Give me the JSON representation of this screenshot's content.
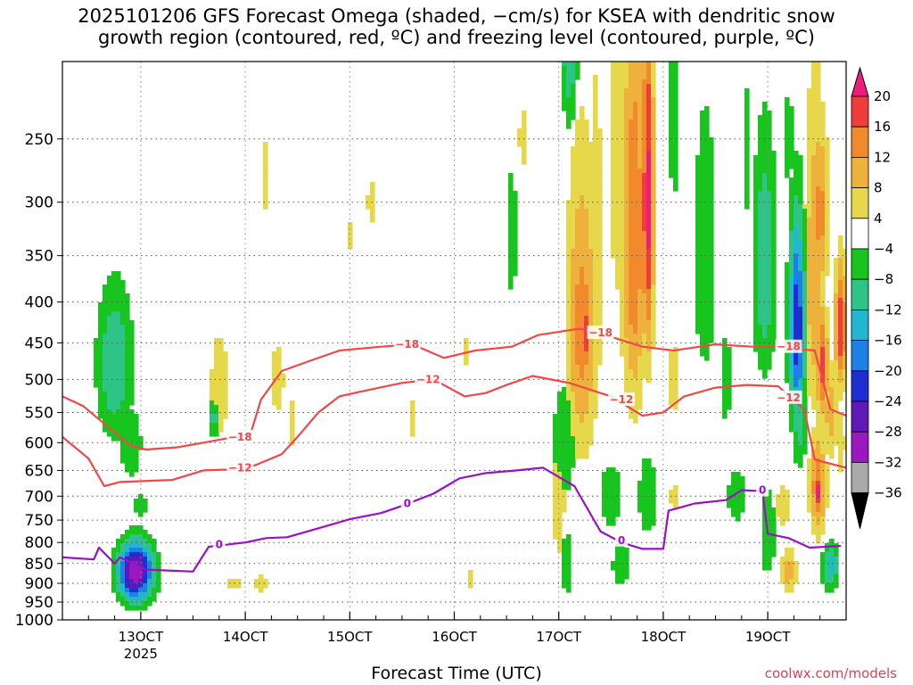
{
  "title_line1": "2025101206 GFS Forecast Omega (shaded, −cm/s) for KSEA with dendritic snow",
  "title_line2": "growth region (contoured, red, ºC) and freezing level (contoured, purple, ºC)",
  "credit": "coolwx.com/models",
  "chart_data": {
    "type": "heatmap",
    "title": "2025101206 GFS Forecast Omega (shaded, −cm/s) for KSEA with dendritic snow growth region (contoured, red, ºC) and freezing level (contoured, purple, ºC)",
    "xlabel": "Forecast Time (UTC)",
    "ylabel": "",
    "y_axis": {
      "scale": "log-pressure",
      "unit": "hPa",
      "ylim": [
        1000,
        200
      ],
      "ticks": [
        250,
        300,
        350,
        400,
        450,
        500,
        550,
        600,
        650,
        700,
        750,
        800,
        850,
        900,
        950,
        1000
      ]
    },
    "x_axis": {
      "start_day": 12.25,
      "end_day": 19.75,
      "ticks": [
        {
          "day": 13,
          "label": "13OCT",
          "sub": "2025"
        },
        {
          "day": 14,
          "label": "14OCT"
        },
        {
          "day": 15,
          "label": "15OCT"
        },
        {
          "day": 16,
          "label": "16OCT"
        },
        {
          "day": 17,
          "label": "17OCT"
        },
        {
          "day": 18,
          "label": "18OCT"
        },
        {
          "day": 19,
          "label": "19OCT"
        }
      ]
    },
    "grid": true,
    "colorbar": {
      "labels": [
        "20",
        "16",
        "12",
        "8",
        "4",
        "−4",
        "−8",
        "−12",
        "−16",
        "−20",
        "−24",
        "−28",
        "−32",
        "−36"
      ],
      "bins": [
        {
          "v": 22,
          "c": "#ee1c7a"
        },
        {
          "v": 18,
          "c": "#f03c3c"
        },
        {
          "v": 14,
          "c": "#f08a2c"
        },
        {
          "v": 10,
          "c": "#eeb23c"
        },
        {
          "v": 6,
          "c": "#e6d84a"
        },
        {
          "v": 0,
          "c": "#ffffff"
        },
        {
          "v": -6,
          "c": "#18c41e"
        },
        {
          "v": -10,
          "c": "#2ec488"
        },
        {
          "v": -14,
          "c": "#22b6d0"
        },
        {
          "v": -18,
          "c": "#1c80e6"
        },
        {
          "v": -22,
          "c": "#1e2ed0"
        },
        {
          "v": -26,
          "c": "#6018b8"
        },
        {
          "v": -30,
          "c": "#9a18c0"
        },
        {
          "v": -34,
          "c": "#aaaaaa"
        },
        {
          "v": -38,
          "c": "#000000"
        }
      ]
    },
    "omega_blobs": [
      {
        "t": 12.75,
        "p": 480,
        "wt": 0.18,
        "wp": 110,
        "v": -12
      },
      {
        "t": 12.9,
        "p": 600,
        "wt": 0.12,
        "wp": 70,
        "v": -8
      },
      {
        "t": 13.0,
        "p": 720,
        "wt": 0.08,
        "wp": 40,
        "v": -6
      },
      {
        "t": 12.95,
        "p": 870,
        "wt": 0.17,
        "wp": 75,
        "v": -32
      },
      {
        "t": 13.7,
        "p": 560,
        "wt": 0.06,
        "wp": 30,
        "v": -10
      },
      {
        "t": 13.75,
        "p": 510,
        "wt": 0.12,
        "wp": 110,
        "v": 6
      },
      {
        "t": 13.9,
        "p": 900,
        "wt": 0.12,
        "wp": 30,
        "v": 5
      },
      {
        "t": 14.2,
        "p": 280,
        "wt": 0.06,
        "wp": 60,
        "v": 5
      },
      {
        "t": 14.3,
        "p": 500,
        "wt": 0.1,
        "wp": 70,
        "v": 6
      },
      {
        "t": 14.45,
        "p": 570,
        "wt": 0.08,
        "wp": 80,
        "v": 5
      },
      {
        "t": 14.15,
        "p": 900,
        "wt": 0.1,
        "wp": 30,
        "v": 6
      },
      {
        "t": 15.0,
        "p": 330,
        "wt": 0.05,
        "wp": 30,
        "v": 5
      },
      {
        "t": 15.2,
        "p": 300,
        "wt": 0.06,
        "wp": 40,
        "v": 5
      },
      {
        "t": 15.6,
        "p": 560,
        "wt": 0.05,
        "wp": 60,
        "v": 5
      },
      {
        "t": 16.1,
        "p": 460,
        "wt": 0.05,
        "wp": 40,
        "v": 5
      },
      {
        "t": 16.15,
        "p": 890,
        "wt": 0.05,
        "wp": 50,
        "v": 5
      },
      {
        "t": 16.55,
        "p": 330,
        "wt": 0.05,
        "wp": 70,
        "v": -8
      },
      {
        "t": 16.65,
        "p": 250,
        "wt": 0.06,
        "wp": 50,
        "v": 5
      },
      {
        "t": 17.0,
        "p": 700,
        "wt": 0.08,
        "wp": 200,
        "v": 6
      },
      {
        "t": 17.05,
        "p": 600,
        "wt": 0.12,
        "wp": 110,
        "v": -8
      },
      {
        "t": 17.08,
        "p": 850,
        "wt": 0.06,
        "wp": 90,
        "v": -8
      },
      {
        "t": 17.1,
        "p": 180,
        "wt": 0.08,
        "wp": 55,
        "v": -14
      },
      {
        "t": 17.22,
        "p": 430,
        "wt": 0.15,
        "wp": 180,
        "v": 14
      },
      {
        "t": 17.25,
        "p": 440,
        "wt": 0.04,
        "wp": 50,
        "v": 22
      },
      {
        "t": 17.35,
        "p": 360,
        "wt": 0.1,
        "wp": 240,
        "v": 6
      },
      {
        "t": 17.5,
        "p": 700,
        "wt": 0.12,
        "wp": 70,
        "v": -8
      },
      {
        "t": 17.6,
        "p": 850,
        "wt": 0.1,
        "wp": 60,
        "v": -8
      },
      {
        "t": 17.6,
        "p": 250,
        "wt": 0.14,
        "wp": 170,
        "v": 8
      },
      {
        "t": 17.72,
        "p": 330,
        "wt": 0.12,
        "wp": 200,
        "v": 16
      },
      {
        "t": 17.85,
        "p": 300,
        "wt": 0.06,
        "wp": 160,
        "v": 22
      },
      {
        "t": 17.85,
        "p": 700,
        "wt": 0.1,
        "wp": 90,
        "v": -8
      },
      {
        "t": 18.1,
        "p": 240,
        "wt": 0.06,
        "wp": 90,
        "v": -6
      },
      {
        "t": 18.1,
        "p": 500,
        "wt": 0.08,
        "wp": 70,
        "v": 6
      },
      {
        "t": 18.1,
        "p": 700,
        "wt": 0.06,
        "wp": 60,
        "v": 5
      },
      {
        "t": 18.4,
        "p": 350,
        "wt": 0.12,
        "wp": 150,
        "v": -8
      },
      {
        "t": 18.6,
        "p": 500,
        "wt": 0.06,
        "wp": 100,
        "v": -6
      },
      {
        "t": 18.8,
        "p": 260,
        "wt": 0.06,
        "wp": 70,
        "v": -6
      },
      {
        "t": 18.7,
        "p": 700,
        "wt": 0.1,
        "wp": 60,
        "v": -8
      },
      {
        "t": 18.97,
        "p": 360,
        "wt": 0.12,
        "wp": 130,
        "v": -12
      },
      {
        "t": 18.95,
        "p": 350,
        "wt": 0.03,
        "wp": 30,
        "v": -18
      },
      {
        "t": 19.0,
        "p": 780,
        "wt": 0.08,
        "wp": 110,
        "v": -8
      },
      {
        "t": 19.15,
        "p": 720,
        "wt": 0.08,
        "wp": 50,
        "v": 8
      },
      {
        "t": 19.2,
        "p": 870,
        "wt": 0.08,
        "wp": 60,
        "v": 10
      },
      {
        "t": 19.2,
        "p": 250,
        "wt": 0.06,
        "wp": 50,
        "v": -6
      },
      {
        "t": 19.28,
        "p": 430,
        "wt": 0.08,
        "wp": 130,
        "v": -24
      },
      {
        "t": 19.3,
        "p": 560,
        "wt": 0.08,
        "wp": 90,
        "v": -10
      },
      {
        "t": 19.45,
        "p": 370,
        "wt": 0.1,
        "wp": 170,
        "v": 12
      },
      {
        "t": 19.5,
        "p": 310,
        "wt": 0.08,
        "wp": 80,
        "v": 14
      },
      {
        "t": 19.48,
        "p": 680,
        "wt": 0.08,
        "wp": 100,
        "v": 16
      },
      {
        "t": 19.48,
        "p": 690,
        "wt": 0.03,
        "wp": 40,
        "v": 22
      },
      {
        "t": 19.52,
        "p": 480,
        "wt": 0.06,
        "wp": 80,
        "v": 18
      },
      {
        "t": 19.6,
        "p": 550,
        "wt": 0.08,
        "wp": 80,
        "v": 10
      },
      {
        "t": 19.6,
        "p": 860,
        "wt": 0.08,
        "wp": 60,
        "v": -14
      },
      {
        "t": 19.7,
        "p": 430,
        "wt": 0.06,
        "wp": 80,
        "v": 20
      },
      {
        "t": 19.7,
        "p": 600,
        "wt": 0.06,
        "wp": 80,
        "v": 6
      }
    ],
    "contours": [
      {
        "name": "freezing level",
        "label": "0",
        "color": "#9a10c6",
        "points": [
          [
            12.25,
            835
          ],
          [
            12.55,
            840
          ],
          [
            12.6,
            812
          ],
          [
            12.75,
            850
          ],
          [
            12.8,
            835
          ],
          [
            13.05,
            865
          ],
          [
            13.5,
            870
          ],
          [
            13.65,
            810
          ],
          [
            14.0,
            800
          ],
          [
            14.2,
            790
          ],
          [
            14.4,
            788
          ],
          [
            14.7,
            768
          ],
          [
            15.0,
            748
          ],
          [
            15.3,
            735
          ],
          [
            15.5,
            720
          ],
          [
            15.8,
            695
          ],
          [
            16.05,
            665
          ],
          [
            16.3,
            655
          ],
          [
            16.6,
            650
          ],
          [
            16.85,
            645
          ],
          [
            17.15,
            680
          ],
          [
            17.4,
            775
          ],
          [
            17.6,
            800
          ],
          [
            17.8,
            815
          ],
          [
            18.0,
            815
          ],
          [
            18.05,
            730
          ],
          [
            18.3,
            715
          ],
          [
            18.6,
            708
          ],
          [
            18.75,
            688
          ],
          [
            18.95,
            690
          ],
          [
            19.0,
            780
          ],
          [
            19.2,
            790
          ],
          [
            19.4,
            812
          ],
          [
            19.7,
            808
          ]
        ],
        "labels": [
          {
            "t": 13.75,
            "p": 805
          },
          {
            "t": 15.55,
            "p": 715
          },
          {
            "t": 17.6,
            "p": 795
          },
          {
            "t": 18.95,
            "p": 688
          }
        ]
      },
      {
        "name": "-12 C isotherm",
        "label": "−12",
        "color": "#f04848",
        "points": [
          [
            12.25,
            590
          ],
          [
            12.5,
            628
          ],
          [
            12.65,
            680
          ],
          [
            12.8,
            672
          ],
          [
            13.3,
            668
          ],
          [
            13.6,
            650
          ],
          [
            13.9,
            648
          ],
          [
            14.1,
            640
          ],
          [
            14.35,
            620
          ],
          [
            14.5,
            590
          ],
          [
            14.7,
            550
          ],
          [
            14.9,
            525
          ],
          [
            15.1,
            518
          ],
          [
            15.5,
            505
          ],
          [
            15.8,
            500
          ],
          [
            16.1,
            525
          ],
          [
            16.3,
            520
          ],
          [
            16.5,
            508
          ],
          [
            16.75,
            495
          ],
          [
            17.1,
            505
          ],
          [
            17.5,
            525
          ],
          [
            17.8,
            555
          ],
          [
            18.0,
            550
          ],
          [
            18.2,
            525
          ],
          [
            18.5,
            512
          ],
          [
            18.8,
            508
          ],
          [
            19.1,
            510
          ],
          [
            19.35,
            545
          ],
          [
            19.45,
            630
          ],
          [
            19.75,
            645
          ]
        ],
        "labels": [
          {
            "t": 13.95,
            "p": 645
          },
          {
            "t": 15.75,
            "p": 500
          },
          {
            "t": 17.6,
            "p": 530
          },
          {
            "t": 19.2,
            "p": 527
          }
        ]
      },
      {
        "name": "-18 C isotherm",
        "label": "−18",
        "color": "#f04848",
        "points": [
          [
            12.25,
            525
          ],
          [
            12.45,
            540
          ],
          [
            12.7,
            575
          ],
          [
            12.9,
            605
          ],
          [
            13.05,
            612
          ],
          [
            13.35,
            608
          ],
          [
            13.6,
            600
          ],
          [
            13.9,
            590
          ],
          [
            14.05,
            585
          ],
          [
            14.15,
            530
          ],
          [
            14.35,
            488
          ],
          [
            14.6,
            475
          ],
          [
            14.9,
            460
          ],
          [
            15.3,
            455
          ],
          [
            15.6,
            452
          ],
          [
            15.9,
            470
          ],
          [
            16.2,
            460
          ],
          [
            16.55,
            455
          ],
          [
            16.8,
            440
          ],
          [
            17.2,
            432
          ],
          [
            17.45,
            440
          ],
          [
            17.8,
            455
          ],
          [
            18.1,
            460
          ],
          [
            18.5,
            452
          ],
          [
            18.85,
            455
          ],
          [
            19.05,
            455
          ],
          [
            19.45,
            460
          ],
          [
            19.6,
            545
          ],
          [
            19.75,
            555
          ]
        ],
        "labels": [
          {
            "t": 13.95,
            "p": 590
          },
          {
            "t": 15.55,
            "p": 452
          },
          {
            "t": 17.4,
            "p": 437
          },
          {
            "t": 19.2,
            "p": 455
          }
        ]
      }
    ]
  }
}
